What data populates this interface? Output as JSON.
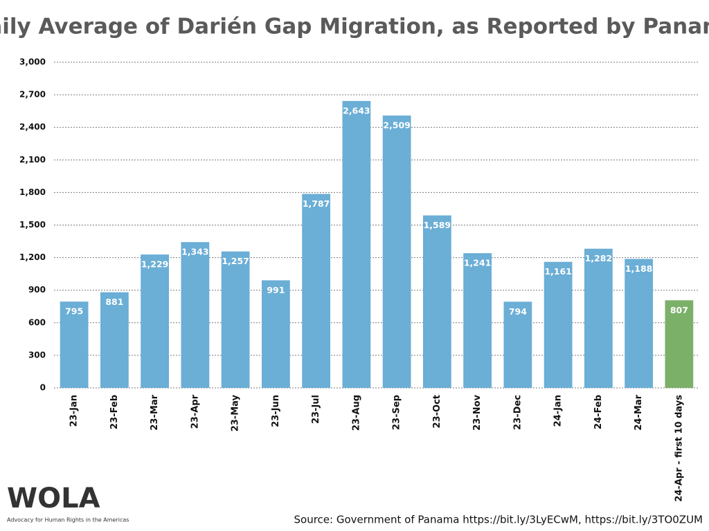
{
  "chart_data": {
    "type": "bar",
    "title": "Daily Average of Darién Gap Migration, as Reported by Panama",
    "categories": [
      "23-Jan",
      "23-Feb",
      "23-Mar",
      "23-Apr",
      "23-May",
      "23-Jun",
      "23-Jul",
      "23-Aug",
      "23-Sep",
      "23-Oct",
      "23-Nov",
      "23-Dec",
      "24-Jan",
      "24-Feb",
      "24-Mar",
      "24-Apr - first 10 days"
    ],
    "values": [
      795,
      881,
      1229,
      1343,
      1257,
      991,
      1787,
      2643,
      2509,
      1589,
      1241,
      794,
      1161,
      1282,
      1188,
      807
    ],
    "value_labels": [
      "795",
      "881",
      "1,229",
      "1,343",
      "1,257",
      "991",
      "1,787",
      "2,643",
      "2,509",
      "1,589",
      "1,241",
      "794",
      "1,161",
      "1,282",
      "1,188",
      "807"
    ],
    "colors": [
      "#6baed6",
      "#6baed6",
      "#6baed6",
      "#6baed6",
      "#6baed6",
      "#6baed6",
      "#6baed6",
      "#6baed6",
      "#6baed6",
      "#6baed6",
      "#6baed6",
      "#6baed6",
      "#6baed6",
      "#6baed6",
      "#6baed6",
      "#7bb069"
    ],
    "ylim": [
      0,
      3000
    ],
    "yticks": [
      0,
      300,
      600,
      900,
      {
        "value": 1200,
        "label": "1,200"
      },
      {
        "value": 1500,
        "label": "1,500"
      },
      {
        "value": 1800,
        "label": "1,800"
      },
      {
        "value": 2100,
        "label": "2,100"
      },
      {
        "value": 2400,
        "label": "2,400"
      },
      {
        "value": 2700,
        "label": "2,700"
      },
      {
        "value": 3000,
        "label": "3,000"
      }
    ],
    "grid": true,
    "source": "Source: Government of Panama https://bit.ly/3LyECwM, https://bit.ly/3TO0ZUM"
  },
  "logo": {
    "name": "WOLA",
    "tagline": "Advocacy for Human Rights in the Americas"
  }
}
